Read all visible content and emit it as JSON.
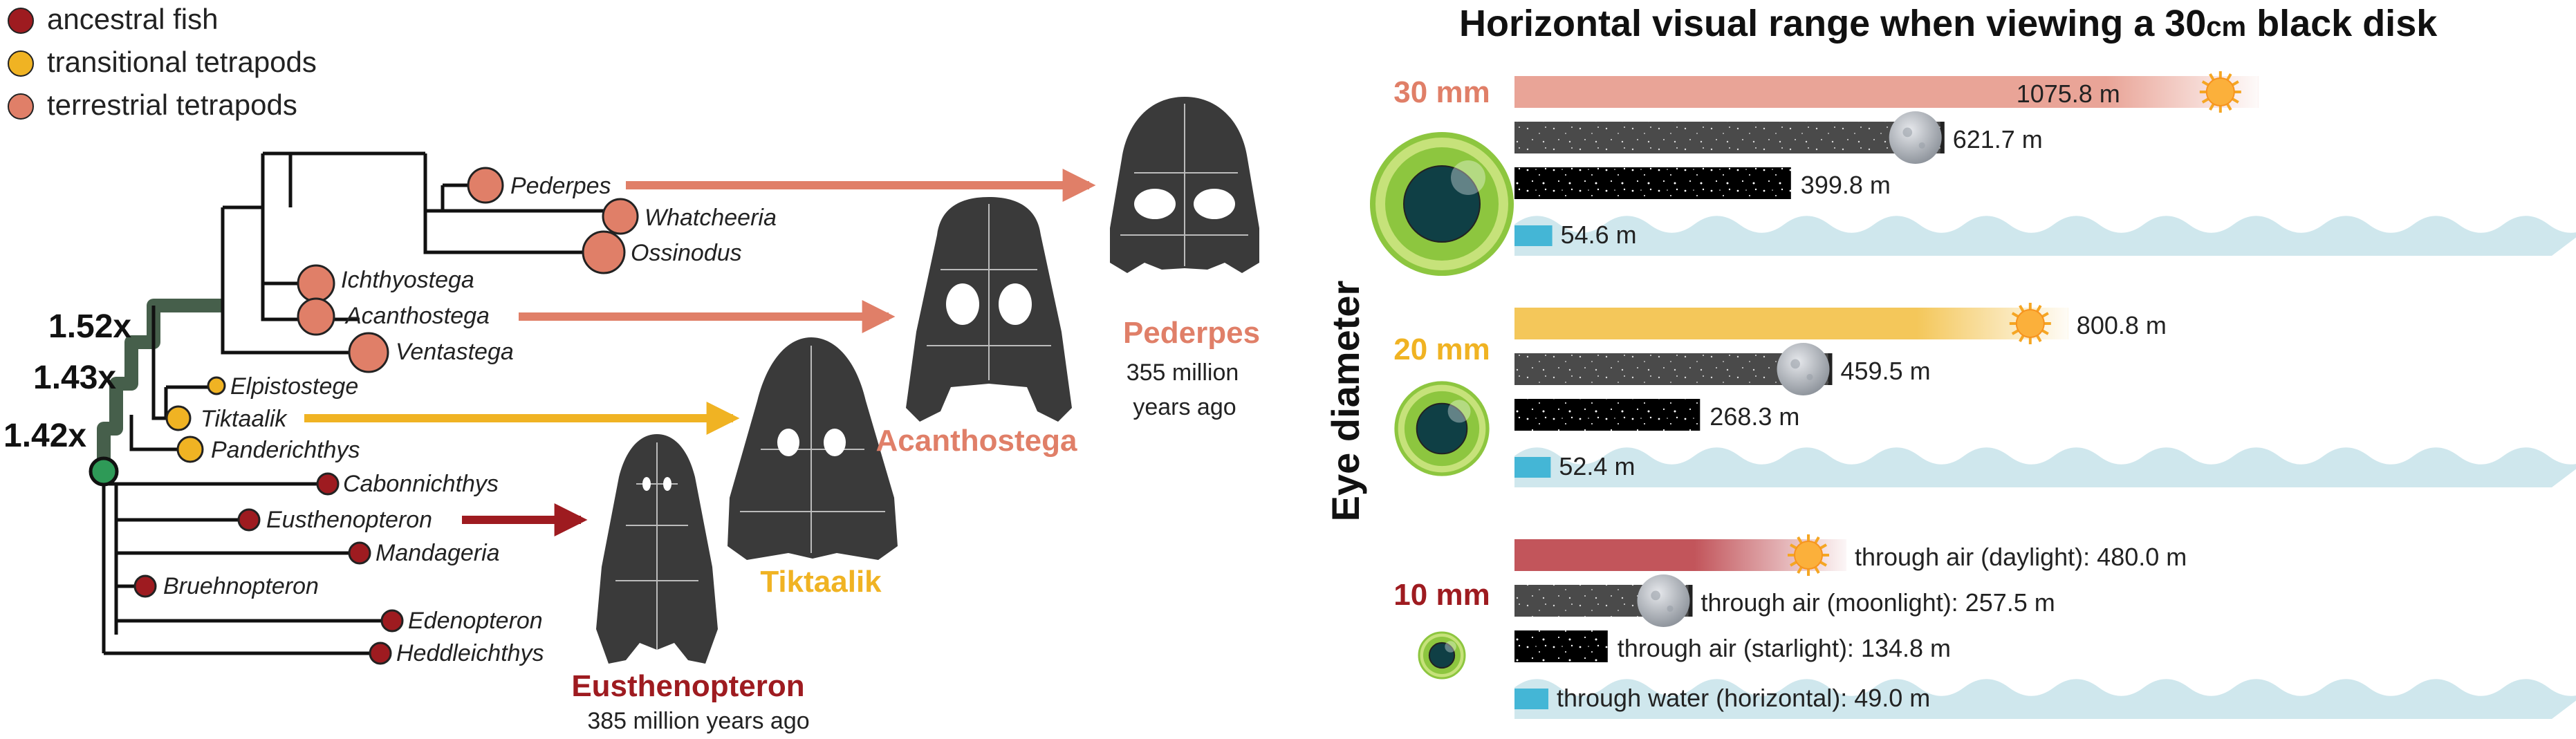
{
  "legend": [
    {
      "label": "ancestral fish",
      "color": "#9e1b20"
    },
    {
      "label": "transitional tetrapods",
      "color": "#f0b323"
    },
    {
      "label": "terrestrial tetrapods",
      "color": "#e07f68"
    }
  ],
  "colors": {
    "ancestral": "#9e1b20",
    "transitional": "#f0b323",
    "terrestrial": "#e07f68",
    "branch_highlight": "#465f4b",
    "tree_line": "#111111",
    "skull": "#3a3a3a",
    "daylight_30": "#e9a497",
    "daylight_20": "#f4c75a",
    "daylight_10": "#c2555b",
    "moon_bar": "#4a4a4a",
    "star_bar": "#000000",
    "water_wave": "#cfe7ed",
    "water_bar": "#44b6d6",
    "eye_outer": "#8dc63f",
    "eye_inner": "#0f3f45"
  },
  "tree": {
    "multipliers": [
      "1.52x",
      "1.43x",
      "1.42x"
    ],
    "taxa": [
      {
        "name": "Pederpes",
        "group": "terrestrial"
      },
      {
        "name": "Whatcheeria",
        "group": "terrestrial"
      },
      {
        "name": "Ossinodus",
        "group": "terrestrial"
      },
      {
        "name": "Ichthyostega",
        "group": "terrestrial"
      },
      {
        "name": "Acanthostega",
        "group": "terrestrial"
      },
      {
        "name": "Ventastega",
        "group": "terrestrial"
      },
      {
        "name": "Elpistostege",
        "group": "transitional"
      },
      {
        "name": "Tiktaalik",
        "group": "transitional"
      },
      {
        "name": "Panderichthys",
        "group": "transitional"
      },
      {
        "name": "Cabonnichthys",
        "group": "ancestral"
      },
      {
        "name": "Eusthenopteron",
        "group": "ancestral"
      },
      {
        "name": "Mandageria",
        "group": "ancestral"
      },
      {
        "name": "Bruehnopteron",
        "group": "ancestral"
      },
      {
        "name": "Edenopteron",
        "group": "ancestral"
      },
      {
        "name": "Heddleichthys",
        "group": "ancestral"
      }
    ]
  },
  "skulls": [
    {
      "name": "Eusthenopteron",
      "caption": "385 million years ago",
      "group": "ancestral"
    },
    {
      "name": "Tiktaalik",
      "caption": "",
      "group": "transitional"
    },
    {
      "name": "Acanthostega",
      "caption": "",
      "group": "terrestrial"
    },
    {
      "name": "Pederpes",
      "caption_lines": [
        "355 million",
        "years ago"
      ],
      "group": "terrestrial"
    }
  ],
  "right_panel": {
    "title_pre": "Horizontal visual range when viewing a 30",
    "title_unit": "cm",
    "title_post": " black disk",
    "axis_label": "Eye diameter",
    "xmax_m": 1500,
    "groups": [
      {
        "label": "30 mm",
        "label_color": "#e07f68",
        "eye_scale": 1.0,
        "bars": [
          {
            "kind": "daylight",
            "value": 1075.8,
            "text": "1075.8 m"
          },
          {
            "kind": "moonlight",
            "value": 621.7,
            "text": "621.7 m"
          },
          {
            "kind": "starlight",
            "value": 399.8,
            "text": "399.8 m"
          },
          {
            "kind": "water",
            "value": 54.6,
            "text": "54.6 m"
          }
        ]
      },
      {
        "label": "20 mm",
        "label_color": "#f0b323",
        "eye_scale": 0.66,
        "bars": [
          {
            "kind": "daylight",
            "value": 800.8,
            "text": "800.8 m"
          },
          {
            "kind": "moonlight",
            "value": 459.5,
            "text": "459.5 m"
          },
          {
            "kind": "starlight",
            "value": 268.3,
            "text": "268.3 m"
          },
          {
            "kind": "water",
            "value": 52.4,
            "text": "52.4 m"
          }
        ]
      },
      {
        "label": "10 mm",
        "label_color": "#9e1b20",
        "eye_scale": 0.33,
        "bars": [
          {
            "kind": "daylight",
            "value": 480.0,
            "text": "through air (daylight): 480.0 m"
          },
          {
            "kind": "moonlight",
            "value": 257.5,
            "text": "through air (moonlight): 257.5 m"
          },
          {
            "kind": "starlight",
            "value": 134.8,
            "text": "through air (starlight): 134.8 m"
          },
          {
            "kind": "water",
            "value": 49.0,
            "text": "through water (horizontal): 49.0 m"
          }
        ]
      }
    ]
  }
}
